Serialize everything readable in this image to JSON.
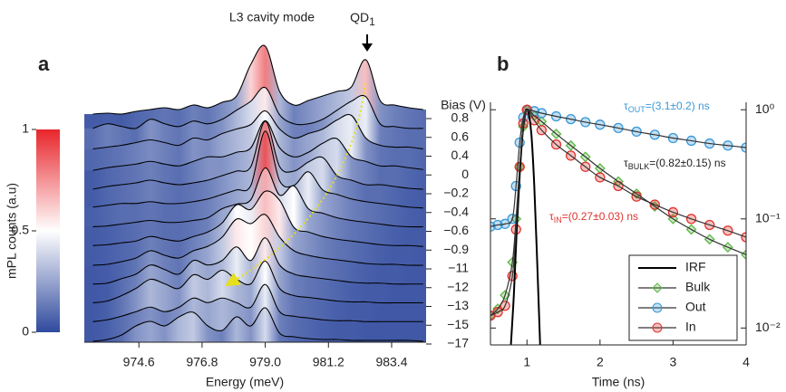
{
  "chart_data": [
    {
      "type": "waterfall",
      "panel": "a",
      "annotations": [
        "L3 cavity mode"
      ],
      "qd": {
        "text": "QD",
        "sub": "1"
      },
      "xlabel": "Energy (meV)",
      "ylabel": "Bias (V)",
      "xlim": [
        972.7,
        984.6
      ],
      "xticks": [
        974.6,
        976.8,
        {
          "value": 979,
          "label": "979.0"
        },
        981.2,
        983.4
      ],
      "energies": [
        973.0,
        973.5,
        974.0,
        974.5,
        975.0,
        975.5,
        976.0,
        976.5,
        977.0,
        977.5,
        978.0,
        978.5,
        979.0,
        979.5,
        980.0,
        980.5,
        981.0,
        981.5,
        982.0,
        982.5,
        983.0,
        983.5,
        984.0,
        984.5
      ],
      "traces": [
        {
          "name": "0.8",
          "values": [
            0.05,
            0.06,
            0.05,
            0.08,
            0.1,
            0.12,
            0.1,
            0.15,
            0.12,
            0.18,
            0.25,
            0.6,
            0.8,
            0.3,
            0.15,
            0.2,
            0.25,
            0.3,
            0.35,
            0.65,
            0.2,
            0.15,
            0.12,
            0.1
          ]
        },
        {
          "name": "0.6",
          "values": [
            0.1,
            0.15,
            0.12,
            0.1,
            0.2,
            0.15,
            0.12,
            0.18,
            0.15,
            0.2,
            0.3,
            0.4,
            0.55,
            0.25,
            0.15,
            0.15,
            0.2,
            0.3,
            0.4,
            0.45,
            0.15,
            0.12,
            0.1,
            0.1
          ]
        },
        {
          "name": "0.4",
          "values": [
            0.08,
            0.1,
            0.12,
            0.15,
            0.18,
            0.15,
            0.12,
            0.2,
            0.18,
            0.25,
            0.3,
            0.35,
            0.5,
            0.3,
            0.2,
            0.25,
            0.3,
            0.4,
            0.45,
            0.2,
            0.12,
            0.1,
            0.1,
            0.08
          ]
        },
        {
          "name": "0",
          "values": [
            0.05,
            0.08,
            0.1,
            0.12,
            0.15,
            0.12,
            0.1,
            0.15,
            0.2,
            0.2,
            0.25,
            0.3,
            0.6,
            0.3,
            0.2,
            0.25,
            0.35,
            0.4,
            0.2,
            0.15,
            0.1,
            0.1,
            0.08,
            0.06
          ]
        },
        {
          "name": "−0.2",
          "values": [
            0.05,
            0.08,
            0.1,
            0.12,
            0.15,
            0.12,
            0.1,
            0.12,
            0.15,
            0.2,
            0.25,
            0.3,
            0.8,
            0.3,
            0.25,
            0.35,
            0.4,
            0.2,
            0.15,
            0.1,
            0.1,
            0.08,
            0.06,
            0.05
          ]
        },
        {
          "name": "−0.4",
          "values": [
            0.06,
            0.08,
            0.1,
            0.1,
            0.12,
            0.1,
            0.1,
            0.12,
            0.15,
            0.2,
            0.25,
            0.3,
            0.9,
            0.35,
            0.3,
            0.45,
            0.25,
            0.2,
            0.15,
            0.12,
            0.1,
            0.08,
            0.06,
            0.05
          ]
        },
        {
          "name": "−0.6",
          "values": [
            0.05,
            0.06,
            0.08,
            0.1,
            0.12,
            0.1,
            0.1,
            0.12,
            0.15,
            0.25,
            0.3,
            0.35,
            0.7,
            0.4,
            0.5,
            0.25,
            0.2,
            0.15,
            0.12,
            0.1,
            0.08,
            0.06,
            0.05,
            0.05
          ]
        },
        {
          "name": "−0.9",
          "values": [
            0.05,
            0.06,
            0.08,
            0.1,
            0.15,
            0.12,
            0.1,
            0.15,
            0.2,
            0.3,
            0.5,
            0.45,
            0.65,
            0.55,
            0.25,
            0.2,
            0.15,
            0.12,
            0.1,
            0.08,
            0.06,
            0.05,
            0.05,
            0.04
          ]
        },
        {
          "name": "−11",
          "values": [
            0.04,
            0.05,
            0.08,
            0.12,
            0.2,
            0.15,
            0.12,
            0.2,
            0.25,
            0.35,
            0.55,
            0.5,
            0.6,
            0.35,
            0.2,
            0.15,
            0.12,
            0.1,
            0.08,
            0.06,
            0.05,
            0.05,
            0.04,
            0.04
          ]
        },
        {
          "name": "−12",
          "values": [
            0.04,
            0.05,
            0.1,
            0.15,
            0.25,
            0.2,
            0.15,
            0.3,
            0.25,
            0.3,
            0.45,
            0.3,
            0.55,
            0.25,
            0.15,
            0.12,
            0.1,
            0.08,
            0.06,
            0.05,
            0.05,
            0.04,
            0.04,
            0.04
          ]
        },
        {
          "name": "−13",
          "values": [
            0.04,
            0.06,
            0.12,
            0.2,
            0.3,
            0.25,
            0.2,
            0.35,
            0.3,
            0.4,
            0.3,
            0.25,
            0.5,
            0.2,
            0.12,
            0.1,
            0.08,
            0.06,
            0.05,
            0.05,
            0.04,
            0.04,
            0.04,
            0.04
          ]
        },
        {
          "name": "−15",
          "values": [
            0.04,
            0.06,
            0.1,
            0.15,
            0.2,
            0.15,
            0.2,
            0.3,
            0.25,
            0.3,
            0.25,
            0.2,
            0.45,
            0.15,
            0.1,
            0.08,
            0.06,
            0.05,
            0.05,
            0.04,
            0.04,
            0.04,
            0.04,
            0.04
          ]
        },
        {
          "name": "−17",
          "values": [
            0.03,
            0.05,
            0.1,
            0.2,
            0.25,
            0.2,
            0.3,
            0.35,
            0.2,
            0.15,
            0.3,
            0.2,
            0.4,
            0.12,
            0.08,
            0.06,
            0.05,
            0.05,
            0.04,
            0.04,
            0.04,
            0.04,
            0.04,
            0.03
          ]
        }
      ],
      "colorbar": {
        "label": "mPL counts (a.u)",
        "lim": [
          0,
          1
        ],
        "ticks": [
          0,
          0.5,
          1
        ],
        "colormap": [
          "#2f4a9e",
          "#ffffff",
          "#e8262b"
        ]
      }
    },
    {
      "type": "line",
      "panel": "b",
      "xlabel": "Time (ns)",
      "log_y": true,
      "xlim": [
        0.5,
        4
      ],
      "xticks": [
        1,
        2,
        3,
        4
      ],
      "ylim": [
        0.007,
        1.17
      ],
      "yticks": [
        {
          "value": 0.01,
          "label": "10⁻²"
        },
        {
          "value": 0.1,
          "label": "10⁻¹"
        },
        {
          "value": 1,
          "label": "10⁰"
        }
      ],
      "legend": "lower right",
      "series": [
        {
          "name": "IRF",
          "color": "#000000",
          "marker": "none",
          "x": [
            0.78,
            0.82,
            0.86,
            0.9,
            0.94,
            0.98,
            1.0,
            1.02,
            1.06,
            1.1,
            1.14,
            1.18
          ],
          "values": [
            0.007,
            0.02,
            0.08,
            0.25,
            0.6,
            0.95,
            1.0,
            0.95,
            0.6,
            0.2,
            0.04,
            0.007
          ]
        },
        {
          "name": "Bulk",
          "color": "#5cb646",
          "marker": "diamond",
          "x": [
            0.5,
            0.6,
            0.7,
            0.8,
            0.85,
            0.9,
            0.95,
            1.0,
            1.1,
            1.2,
            1.4,
            1.6,
            1.8,
            2.0,
            2.25,
            2.5,
            2.75,
            3.0,
            3.25,
            3.5,
            3.75,
            4.0
          ],
          "values": [
            0.013,
            0.015,
            0.02,
            0.04,
            0.1,
            0.3,
            0.7,
            1.0,
            0.88,
            0.78,
            0.6,
            0.47,
            0.37,
            0.29,
            0.22,
            0.17,
            0.13,
            0.1,
            0.08,
            0.065,
            0.055,
            0.047
          ]
        },
        {
          "name": "Out",
          "color": "#3a98d8",
          "marker": "circle",
          "x": [
            0.5,
            0.6,
            0.7,
            0.8,
            0.85,
            0.9,
            0.95,
            1.0,
            1.1,
            1.2,
            1.4,
            1.6,
            1.8,
            2.0,
            2.25,
            2.5,
            2.75,
            3.0,
            3.25,
            3.5,
            3.75,
            4.0
          ],
          "values": [
            0.085,
            0.088,
            0.09,
            0.1,
            0.2,
            0.5,
            0.85,
            1.0,
            0.97,
            0.93,
            0.87,
            0.82,
            0.77,
            0.73,
            0.68,
            0.63,
            0.59,
            0.55,
            0.52,
            0.49,
            0.47,
            0.45
          ]
        },
        {
          "name": "In",
          "color": "#e0342f",
          "marker": "circle",
          "x": [
            0.5,
            0.6,
            0.7,
            0.8,
            0.85,
            0.9,
            0.95,
            1.0,
            1.1,
            1.2,
            1.4,
            1.6,
            1.8,
            2.0,
            2.25,
            2.5,
            2.75,
            3.0,
            3.25,
            3.5,
            3.75,
            4.0
          ],
          "values": [
            0.013,
            0.014,
            0.016,
            0.03,
            0.08,
            0.3,
            0.75,
            1.0,
            0.8,
            0.65,
            0.48,
            0.38,
            0.3,
            0.24,
            0.2,
            0.16,
            0.135,
            0.115,
            0.1,
            0.088,
            0.078,
            0.068
          ]
        }
      ],
      "annotations": [
        {
          "symbol": "τ",
          "sub": "OUT",
          "text": "=(3.1±0.2) ns",
          "color": "#3a98d8"
        },
        {
          "symbol": "τ",
          "sub": "BULK",
          "text": "=(0.82±0.15) ns",
          "color": "#222222"
        },
        {
          "symbol": "τ",
          "sub": "IN",
          "text": "=(0.27±0.03) ns",
          "color": "#e0342f"
        }
      ]
    }
  ]
}
